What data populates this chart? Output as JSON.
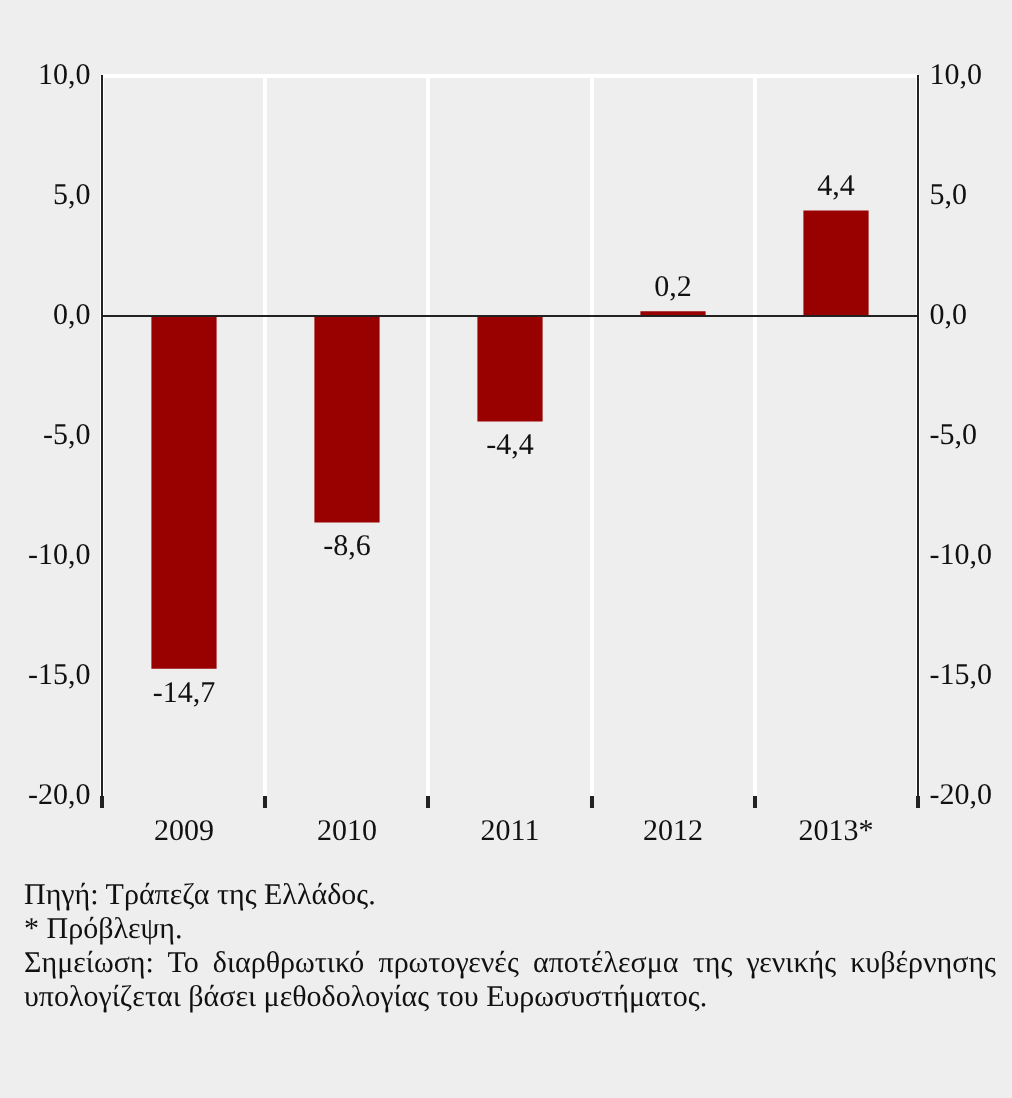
{
  "chart_data": {
    "type": "bar",
    "categories": [
      "2009",
      "2010",
      "2011",
      "2012",
      "2013*"
    ],
    "values": [
      -14.7,
      -8.6,
      -4.4,
      0.2,
      4.4
    ],
    "color": "#990000",
    "value_labels": [
      "-14,7",
      "-8,6",
      "-4,4",
      "0,2",
      "4,4"
    ],
    "ylim": [
      -20,
      10
    ],
    "yticks": [
      {
        "value": -20,
        "label": "-20,0"
      },
      {
        "value": -15,
        "label": "-15,0"
      },
      {
        "value": -10,
        "label": "-10,0"
      },
      {
        "value": -5,
        "label": "-5,0"
      },
      {
        "value": 0,
        "label": "0,0"
      },
      {
        "value": 5,
        "label": "5,0"
      },
      {
        "value": 10,
        "label": "10,0"
      }
    ],
    "y2lim": [
      -20,
      10
    ],
    "y2ticks": [
      {
        "value": -20,
        "label": "-20,0"
      },
      {
        "value": -15,
        "label": "-15,0"
      },
      {
        "value": -10,
        "label": "-10,0"
      },
      {
        "value": -5,
        "label": "-5,0"
      },
      {
        "value": 0,
        "label": "0,0"
      },
      {
        "value": 5,
        "label": "5,0"
      },
      {
        "value": 10,
        "label": "10,0"
      }
    ],
    "grid": "x",
    "legend": false,
    "annotations": [
      "Πηγή: Τράπεζα της Ελλάδος.",
      "* Πρόβλεψη.",
      "Σημείωση: Το διαρθρωτικό πρωτογενές αποτέλεσμα της γενικής κυβέρνησης υπολογίζεται βάσει μεθοδολογίας του Ευρωσυστήματος."
    ]
  }
}
